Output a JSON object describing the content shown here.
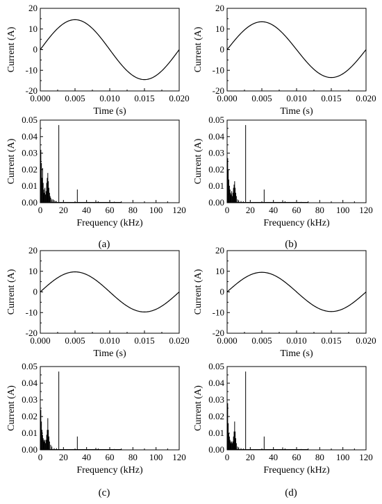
{
  "figure": {
    "captions": [
      "(a)",
      "(b)",
      "(c)",
      "(d)"
    ]
  },
  "chart_data": [
    {
      "panel": "(a)-time",
      "type": "line",
      "xlabel": "Time (s)",
      "ylabel": "Current (A)",
      "xlim": [
        0,
        0.02
      ],
      "ylim": [
        -20,
        20
      ],
      "xticks": [
        "0.000",
        "0.005",
        "0.010",
        "0.015",
        "0.020"
      ],
      "yticks": [
        "-20",
        "-10",
        "0",
        "10",
        "20"
      ],
      "series": [
        {
          "waveform": "sine",
          "amplitude": 14.5,
          "frequency_hz": 50,
          "points": [
            [
              0,
              0
            ],
            [
              0.005,
              14.5
            ],
            [
              0.01,
              0
            ],
            [
              0.015,
              -14.5
            ],
            [
              0.02,
              0
            ]
          ]
        }
      ]
    },
    {
      "panel": "(a)-spectrum",
      "type": "bar",
      "xlabel": "Frequency (kHz)",
      "ylabel": "Current (A)",
      "xlim": [
        0,
        120
      ],
      "ylim": [
        0,
        0.05
      ],
      "xticks": [
        "0",
        "20",
        "40",
        "60",
        "80",
        "100",
        "120"
      ],
      "yticks": [
        "0.00",
        "0.01",
        "0.02",
        "0.03",
        "0.04",
        "0.05"
      ],
      "peaks": [
        [
          0.5,
          0.032
        ],
        [
          1,
          0.024
        ],
        [
          1.5,
          0.015
        ],
        [
          2,
          0.021
        ],
        [
          2.5,
          0.012
        ],
        [
          3,
          0.008
        ],
        [
          3.5,
          0.006
        ],
        [
          4,
          0.009
        ],
        [
          4.5,
          0.005
        ],
        [
          5,
          0.007
        ],
        [
          5.5,
          0.012
        ],
        [
          6,
          0.015
        ],
        [
          6.5,
          0.018
        ],
        [
          7,
          0.013
        ],
        [
          7.5,
          0.009
        ],
        [
          8,
          0.006
        ],
        [
          8.5,
          0.004
        ],
        [
          9,
          0.003
        ],
        [
          10,
          0.002
        ],
        [
          11,
          0.002
        ],
        [
          12,
          0.0015
        ],
        [
          13,
          0.001
        ],
        [
          14,
          0.001
        ],
        [
          16,
          0.047
        ],
        [
          32,
          0.008
        ],
        [
          48,
          0.0015
        ],
        [
          64,
          0.0006
        ]
      ]
    },
    {
      "panel": "(b)-time",
      "type": "line",
      "xlabel": "Time (s)",
      "ylabel": "Current (A)",
      "xlim": [
        0,
        0.02
      ],
      "ylim": [
        -20,
        20
      ],
      "xticks": [
        "0.000",
        "0.005",
        "0.010",
        "0.015",
        "0.020"
      ],
      "yticks": [
        "-20",
        "-10",
        "0",
        "10",
        "20"
      ],
      "series": [
        {
          "waveform": "sine",
          "amplitude": 13.5,
          "frequency_hz": 50,
          "points": [
            [
              0,
              0
            ],
            [
              0.005,
              13.5
            ],
            [
              0.01,
              0
            ],
            [
              0.015,
              -13.5
            ],
            [
              0.02,
              0
            ]
          ]
        }
      ]
    },
    {
      "panel": "(b)-spectrum",
      "type": "bar",
      "xlabel": "Frequency (kHz)",
      "ylabel": "Current (A)",
      "xlim": [
        0,
        120
      ],
      "ylim": [
        0,
        0.05
      ],
      "xticks": [
        "0",
        "20",
        "40",
        "60",
        "80",
        "100",
        "120"
      ],
      "yticks": [
        "0.00",
        "0.01",
        "0.02",
        "0.03",
        "0.04",
        "0.05"
      ],
      "peaks": [
        [
          0.5,
          0.027
        ],
        [
          1,
          0.02
        ],
        [
          1.5,
          0.014
        ],
        [
          2,
          0.01
        ],
        [
          2.5,
          0.008
        ],
        [
          3,
          0.006
        ],
        [
          3.5,
          0.005
        ],
        [
          4,
          0.007
        ],
        [
          4.5,
          0.004
        ],
        [
          5,
          0.006
        ],
        [
          5.5,
          0.009
        ],
        [
          6,
          0.011
        ],
        [
          6.5,
          0.013
        ],
        [
          7,
          0.009
        ],
        [
          7.5,
          0.006
        ],
        [
          8,
          0.004
        ],
        [
          9,
          0.002
        ],
        [
          10,
          0.0015
        ],
        [
          12,
          0.001
        ],
        [
          14,
          0.0008
        ],
        [
          16,
          0.047
        ],
        [
          32,
          0.008
        ],
        [
          48,
          0.0015
        ],
        [
          64,
          0.0005
        ]
      ]
    },
    {
      "panel": "(c)-time",
      "type": "line",
      "xlabel": "Time (s)",
      "ylabel": "Current (A)",
      "xlim": [
        0,
        0.02
      ],
      "ylim": [
        -20,
        20
      ],
      "xticks": [
        "0.000",
        "0.005",
        "0.010",
        "0.015",
        "0.020"
      ],
      "yticks": [
        "-20",
        "-10",
        "0",
        "10",
        "20"
      ],
      "series": [
        {
          "waveform": "sine",
          "amplitude": 9.7,
          "frequency_hz": 50,
          "points": [
            [
              0,
              0
            ],
            [
              0.005,
              9.7
            ],
            [
              0.01,
              0
            ],
            [
              0.015,
              -9.7
            ],
            [
              0.02,
              0
            ]
          ]
        }
      ]
    },
    {
      "panel": "(c)-spectrum",
      "type": "bar",
      "xlabel": "Frequency (kHz)",
      "ylabel": "Current (A)",
      "xlim": [
        0,
        120
      ],
      "ylim": [
        0,
        0.05
      ],
      "xticks": [
        "0",
        "20",
        "40",
        "60",
        "80",
        "100",
        "120"
      ],
      "yticks": [
        "0.00",
        "0.01",
        "0.02",
        "0.03",
        "0.04",
        "0.05"
      ],
      "peaks": [
        [
          0.5,
          0.024
        ],
        [
          1,
          0.017
        ],
        [
          1.5,
          0.012
        ],
        [
          2,
          0.009
        ],
        [
          2.5,
          0.007
        ],
        [
          3,
          0.006
        ],
        [
          3.5,
          0.005
        ],
        [
          4,
          0.006
        ],
        [
          4.5,
          0.004
        ],
        [
          5,
          0.006
        ],
        [
          5.5,
          0.009
        ],
        [
          6,
          0.012
        ],
        [
          6.5,
          0.019
        ],
        [
          7,
          0.012
        ],
        [
          7.5,
          0.008
        ],
        [
          8,
          0.005
        ],
        [
          9,
          0.003
        ],
        [
          10,
          0.002
        ],
        [
          12,
          0.001
        ],
        [
          14,
          0.001
        ],
        [
          16,
          0.047
        ],
        [
          32,
          0.008
        ],
        [
          48,
          0.0012
        ],
        [
          64,
          0.0005
        ]
      ]
    },
    {
      "panel": "(d)-time",
      "type": "line",
      "xlabel": "Time (s)",
      "ylabel": "Current (A)",
      "xlim": [
        0,
        0.02
      ],
      "ylim": [
        -20,
        20
      ],
      "xticks": [
        "0.000",
        "0.005",
        "0.010",
        "0.015",
        "0.020"
      ],
      "yticks": [
        "-20",
        "-10",
        "0",
        "10",
        "20"
      ],
      "series": [
        {
          "waveform": "sine",
          "amplitude": 9.5,
          "frequency_hz": 50,
          "points": [
            [
              0,
              0
            ],
            [
              0.005,
              9.5
            ],
            [
              0.01,
              0
            ],
            [
              0.015,
              -9.5
            ],
            [
              0.02,
              0
            ]
          ]
        }
      ]
    },
    {
      "panel": "(d)-spectrum",
      "type": "bar",
      "xlabel": "Frequency (kHz)",
      "ylabel": "Current (A)",
      "xlim": [
        0,
        120
      ],
      "ylim": [
        0,
        0.05
      ],
      "xticks": [
        "0",
        "20",
        "40",
        "60",
        "80",
        "100",
        "120"
      ],
      "yticks": [
        "0.00",
        "0.01",
        "0.02",
        "0.03",
        "0.04",
        "0.05"
      ],
      "peaks": [
        [
          0.5,
          0.028
        ],
        [
          1,
          0.016
        ],
        [
          1.5,
          0.01
        ],
        [
          2,
          0.008
        ],
        [
          2.5,
          0.006
        ],
        [
          3,
          0.005
        ],
        [
          3.5,
          0.004
        ],
        [
          4,
          0.005
        ],
        [
          4.5,
          0.004
        ],
        [
          5,
          0.005
        ],
        [
          5.5,
          0.008
        ],
        [
          6,
          0.011
        ],
        [
          6.5,
          0.017
        ],
        [
          7,
          0.011
        ],
        [
          7.5,
          0.007
        ],
        [
          8,
          0.004
        ],
        [
          9,
          0.002
        ],
        [
          10,
          0.0015
        ],
        [
          12,
          0.001
        ],
        [
          14,
          0.0008
        ],
        [
          16,
          0.047
        ],
        [
          32,
          0.008
        ],
        [
          48,
          0.0015
        ],
        [
          64,
          0.0005
        ]
      ]
    }
  ]
}
